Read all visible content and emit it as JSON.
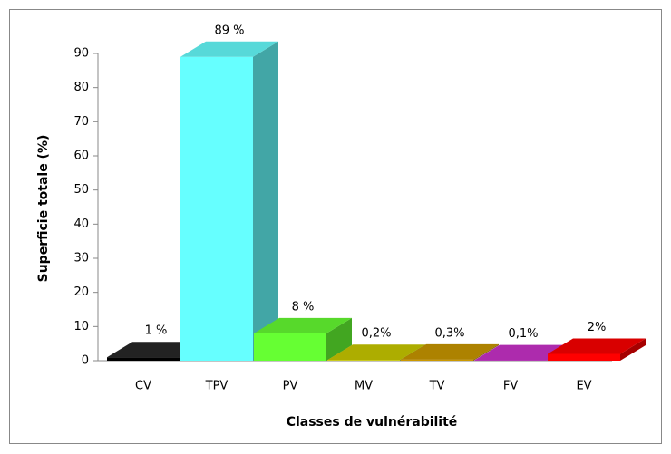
{
  "chart_data": {
    "type": "bar3d",
    "categories": [
      "CV",
      "TPV",
      "PV",
      "MV",
      "TV",
      "FV",
      "EV"
    ],
    "values": [
      1,
      89,
      8,
      0.2,
      0.3,
      0.1,
      2
    ],
    "value_labels": [
      "1 %",
      "89 %",
      "8 %",
      "0,2%",
      "0,3%",
      "0,1%",
      "2%"
    ],
    "colors": [
      "#000000",
      "#66ffff",
      "#66ff33",
      "#cccc00",
      "#cc9900",
      "#cc33cc",
      "#ff0000"
    ],
    "ylim": [
      0,
      90
    ],
    "yticks": [
      0,
      10,
      20,
      30,
      40,
      50,
      60,
      70,
      80,
      90
    ],
    "ylabel": "Superficie totale (%)",
    "xlabel": "Classes de vulnérabilité",
    "grid": false
  }
}
